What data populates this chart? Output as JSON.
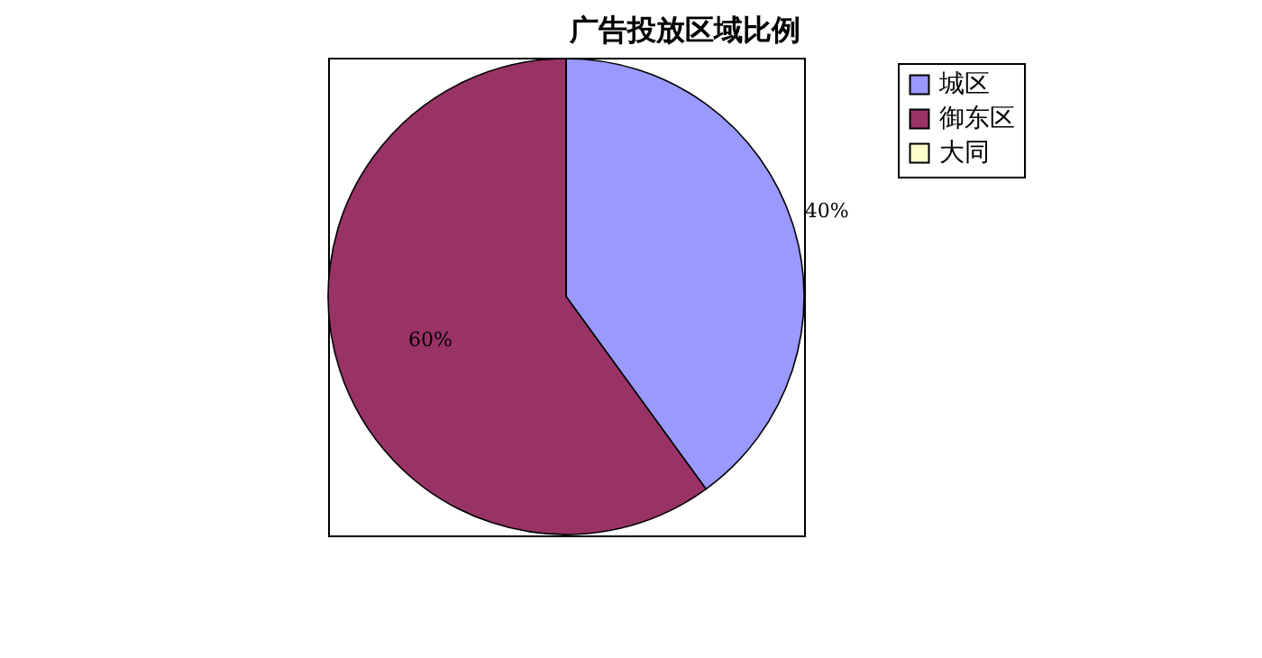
{
  "chart_data": {
    "type": "pie",
    "title": "广告投放区域比例",
    "categories": [
      "城区",
      "御东区",
      "大同"
    ],
    "values": [
      40,
      60,
      0
    ],
    "colors": [
      "#9999ff",
      "#993366",
      "#ffffcc"
    ],
    "value_labels": [
      "40%",
      "60%",
      null
    ],
    "legend": "top right"
  }
}
